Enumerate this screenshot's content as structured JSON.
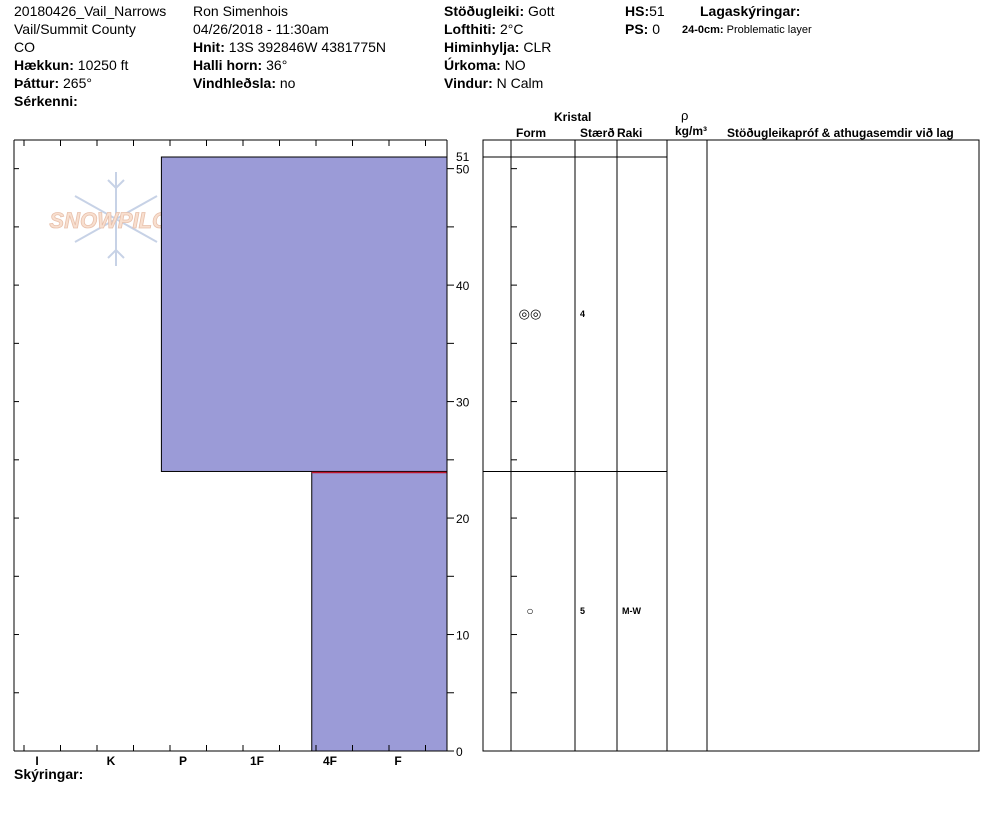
{
  "header": {
    "col1": [
      "20180426_Vail_Narrows",
      "Vail/Summit County",
      "CO"
    ],
    "elevation_label": "Hækkun:",
    "elevation_value": "10250 ft",
    "aspect_label": "Þáttur:",
    "aspect_value": "265°",
    "features_label": "Sérkenni:",
    "observer": "Ron Simenhois",
    "datetime": "04/26/2018 - 11:30am",
    "coords_label": "Hnit:",
    "coords_value": "13S 392846W 4381775N",
    "slope_label": "Halli horn:",
    "slope_value": "36°",
    "wind_loading_label": "Vindhleðsla:",
    "wind_loading_value": "no",
    "stability_label": "Stöðugleiki:",
    "stability_value": "Gott",
    "air_temp_label": "Lofthiti:",
    "air_temp_value": "2°C",
    "sky_label": "Himinhylja:",
    "sky_value": "CLR",
    "precip_label": "Úrkoma:",
    "precip_value": "NO",
    "wind_label": "Vindur:",
    "wind_value": "N Calm",
    "hs_label": "HS:",
    "hs_value": "51",
    "ps_label": "PS:",
    "ps_value": "0",
    "legend_label": "Lagaskýringar:",
    "legend_range": "24-0cm:",
    "legend_text": "Problematic layer"
  },
  "table_headers": {
    "crystal": "Kristal",
    "form": "Form",
    "size": "Stærð",
    "moisture": "Raki",
    "rho": "ρ",
    "density_unit": "kg/m³",
    "stability_comments": "Stöðugleikapróf & athugasemdir við lag"
  },
  "footer_label": "Skýringar:",
  "logo_text": "SNOWPILOT",
  "colors": {
    "layer_fill": "#9b9bd7",
    "problem_line": "#c0142d",
    "axis": "#000000"
  },
  "chart_data": {
    "type": "bar",
    "x_categories": [
      "I",
      "K",
      "P",
      "1F",
      "4F",
      "F"
    ],
    "y_ticks": [
      0,
      10,
      20,
      30,
      40,
      50
    ],
    "y_top_label": "51",
    "ylim": [
      0,
      51
    ],
    "layers": [
      {
        "top": 51,
        "bottom": 24,
        "hardness": 1.7,
        "form_glyph": "◎◎",
        "size": "4",
        "moisture": ""
      },
      {
        "top": 24,
        "bottom": 0,
        "hardness": 3.75,
        "form_glyph": "○",
        "size": "5",
        "moisture": "M-W"
      }
    ],
    "problem_layer_depth": 24
  }
}
